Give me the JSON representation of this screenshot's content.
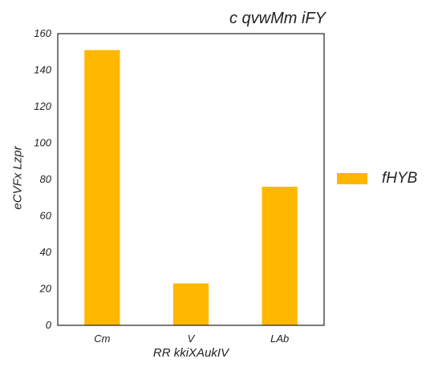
{
  "chart_data": {
    "type": "bar",
    "title": "c qvwMm iFY",
    "xlabel": "RR  kkiXAukIV",
    "ylabel": "eCVFx Lzpr",
    "categories": [
      "Cm",
      "V",
      "LAb"
    ],
    "series": [
      {
        "name": "fHYB",
        "values": [
          151,
          23,
          76
        ],
        "color": "#ffb700"
      }
    ],
    "ylim": [
      0,
      160
    ],
    "yticks": [
      0,
      20,
      40,
      60,
      80,
      100,
      120,
      140,
      160
    ],
    "grid": false,
    "legend_position": "right"
  }
}
